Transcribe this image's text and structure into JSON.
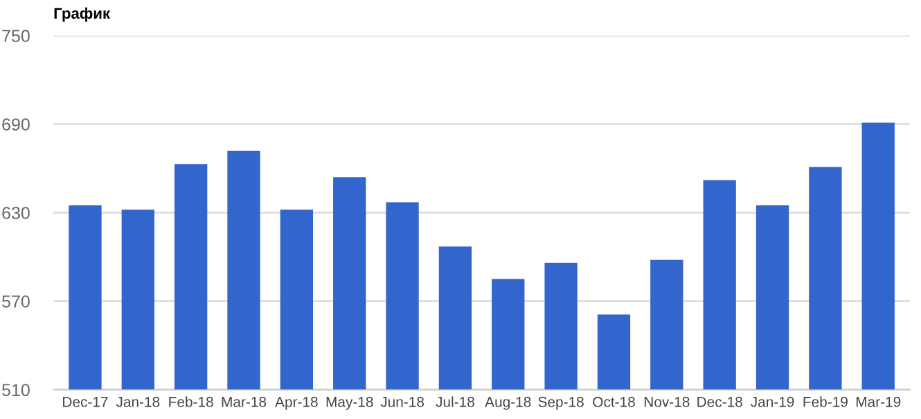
{
  "chart_data": {
    "type": "bar",
    "title": "График",
    "categories": [
      "Dec-17",
      "Jan-18",
      "Feb-18",
      "Mar-18",
      "Apr-18",
      "May-18",
      "Jun-18",
      "Jul-18",
      "Aug-18",
      "Sep-18",
      "Oct-18",
      "Nov-18",
      "Dec-18",
      "Jan-19",
      "Feb-19",
      "Mar-19"
    ],
    "values": [
      635,
      632,
      663,
      672,
      632,
      654,
      637,
      607,
      585,
      596,
      561,
      598,
      652,
      635,
      661,
      691
    ],
    "color": "#3366cc",
    "ylim": [
      510,
      750
    ],
    "yticks": [
      510,
      570,
      630,
      690,
      750
    ],
    "grid": "y",
    "legend": false
  }
}
